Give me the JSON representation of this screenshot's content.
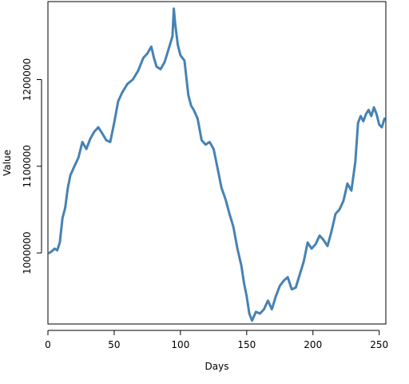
{
  "chart_data": {
    "type": "line",
    "title": "",
    "xlabel": "Days",
    "ylabel": "Value",
    "xlim": [
      0,
      255
    ],
    "ylim": [
      918000,
      1290000
    ],
    "x_ticks": [
      0,
      50,
      100,
      150,
      200,
      250
    ],
    "x_tick_labels": [
      "0",
      "50",
      "100",
      "150",
      "200",
      "250"
    ],
    "y_ticks": [
      1000000,
      1100000,
      1200000
    ],
    "y_tick_labels": [
      "1000000",
      "1100000",
      "1200000"
    ],
    "grid": false,
    "legend": "none",
    "line_color": "#4682b4",
    "series": [
      {
        "x": [
          1,
          3,
          5,
          7,
          9,
          11,
          13,
          15,
          17,
          20,
          23,
          26,
          29,
          32,
          35,
          38,
          41,
          44,
          47,
          50,
          53,
          56,
          60,
          64,
          68,
          72,
          75,
          78,
          80,
          82,
          85,
          88,
          91,
          94,
          95,
          96,
          98,
          100,
          103,
          106,
          108,
          110,
          113,
          116,
          119,
          122,
          125,
          128,
          131,
          134,
          137,
          140,
          143,
          146,
          148,
          150,
          152,
          154,
          157,
          160,
          163,
          166,
          169,
          172,
          175,
          178,
          181,
          184,
          187,
          190,
          193,
          196,
          199,
          202,
          205,
          208,
          211,
          214,
          217,
          220,
          223,
          226,
          229,
          232,
          234,
          236,
          238,
          240,
          242,
          244,
          246,
          248,
          250,
          252,
          254
        ],
        "y": [
          1000000,
          1002000,
          1005000,
          1003000,
          1012000,
          1040000,
          1052000,
          1075000,
          1090000,
          1100000,
          1110000,
          1128000,
          1120000,
          1132000,
          1140000,
          1145000,
          1138000,
          1130000,
          1128000,
          1150000,
          1175000,
          1185000,
          1195000,
          1200000,
          1210000,
          1225000,
          1230000,
          1238000,
          1225000,
          1215000,
          1212000,
          1220000,
          1235000,
          1250000,
          1282000,
          1265000,
          1240000,
          1228000,
          1222000,
          1182000,
          1170000,
          1165000,
          1155000,
          1130000,
          1125000,
          1128000,
          1120000,
          1098000,
          1075000,
          1062000,
          1045000,
          1030000,
          1005000,
          985000,
          965000,
          950000,
          930000,
          922000,
          932000,
          930000,
          935000,
          945000,
          935000,
          950000,
          962000,
          968000,
          972000,
          958000,
          960000,
          975000,
          990000,
          1012000,
          1005000,
          1010000,
          1020000,
          1015000,
          1008000,
          1025000,
          1045000,
          1050000,
          1060000,
          1080000,
          1072000,
          1105000,
          1150000,
          1158000,
          1152000,
          1160000,
          1165000,
          1158000,
          1168000,
          1160000,
          1148000,
          1145000,
          1155000
        ]
      }
    ]
  }
}
